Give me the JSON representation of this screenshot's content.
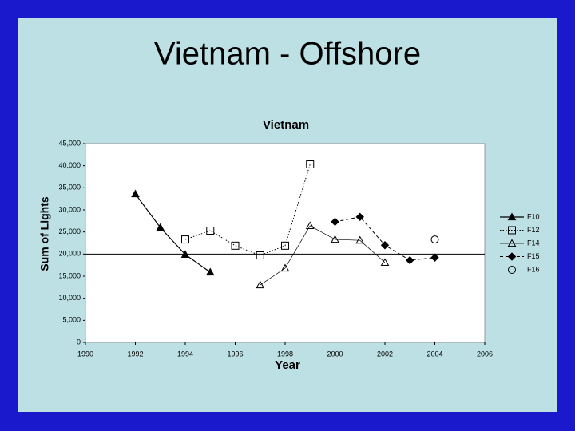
{
  "chart_data": {
    "type": "line",
    "slide_title": "Vietnam - Offshore",
    "title": "Vietnam",
    "xlabel": "Year",
    "ylabel": "Sum of Lights",
    "x": [
      1992,
      1993,
      1994,
      1995,
      1996,
      1997,
      1998,
      1999,
      2000,
      2001,
      2002,
      2003,
      2004
    ],
    "series": [
      {
        "name": "F10",
        "color": "#000000",
        "marker": "triangle-filled",
        "line": "solid",
        "values": [
          33600,
          26000,
          19900,
          15900,
          null,
          null,
          null,
          null,
          null,
          null,
          null,
          null,
          null
        ]
      },
      {
        "name": "F12",
        "color": "#000000",
        "marker": "square-open",
        "line": "dotted",
        "values": [
          null,
          null,
          23300,
          25300,
          21900,
          19700,
          21900,
          40300,
          null,
          null,
          null,
          null,
          null
        ]
      },
      {
        "name": "F14",
        "color": "#000000",
        "marker": "triangle-open",
        "line": "thin",
        "values": [
          null,
          null,
          null,
          null,
          null,
          13000,
          16800,
          26400,
          23300,
          23100,
          18100,
          null,
          null
        ]
      },
      {
        "name": "F15",
        "color": "#000000",
        "marker": "diamond-filled",
        "line": "dashed",
        "values": [
          null,
          null,
          null,
          null,
          null,
          null,
          null,
          null,
          27300,
          28400,
          22000,
          18600,
          19200
        ]
      },
      {
        "name": "F16",
        "color": "#000000",
        "marker": "circle-open",
        "line": "none",
        "values": [
          null,
          null,
          null,
          null,
          null,
          null,
          null,
          null,
          null,
          null,
          null,
          null,
          23300
        ]
      }
    ],
    "hline": 20000,
    "xlim": [
      1990,
      2006
    ],
    "xticks": [
      1990,
      1992,
      1994,
      1996,
      1998,
      2000,
      2002,
      2004,
      2006
    ],
    "ylim": [
      0,
      45000
    ],
    "yticks": [
      0,
      {
        "value": 5000,
        "label": "5,000"
      },
      {
        "value": 10000,
        "label": "10,000"
      },
      {
        "value": 15000,
        "label": "15,000"
      },
      {
        "value": 20000,
        "label": "20,000"
      },
      {
        "value": 25000,
        "label": "25,000"
      },
      {
        "value": 30000,
        "label": "30,000"
      },
      {
        "value": 35000,
        "label": "35,000"
      },
      {
        "value": 40000,
        "label": "40,000"
      },
      {
        "value": 45000,
        "label": "45,000"
      }
    ],
    "legend": "right"
  }
}
